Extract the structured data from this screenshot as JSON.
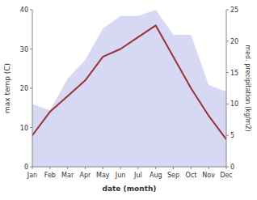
{
  "chart_data": {
    "type": "line",
    "categories": [
      "Jan",
      "Feb",
      "Mar",
      "Apr",
      "May",
      "Jun",
      "Jul",
      "Aug",
      "Sep",
      "Oct",
      "Nov",
      "Dec"
    ],
    "series": [
      {
        "type": "area",
        "color": "#c5c8f0",
        "axis": "y2",
        "values": [
          10,
          9,
          14,
          17,
          22,
          24,
          24,
          25,
          21,
          21,
          13,
          12
        ]
      },
      {
        "type": "line",
        "color": "#993333",
        "values": [
          8,
          14,
          18,
          22,
          28,
          30,
          33,
          36,
          28,
          20,
          13,
          7
        ]
      }
    ],
    "xlabel": "date (month)",
    "ylabel": "max temp (C)",
    "y2label": "med. precipitation (kg/m2)",
    "ylim": [
      0,
      40
    ],
    "yticks": [
      0,
      10,
      20,
      30,
      40
    ],
    "y2lim": [
      0,
      25
    ],
    "y2ticks": [
      0,
      5,
      10,
      15,
      20,
      25
    ],
    "grid": false
  }
}
